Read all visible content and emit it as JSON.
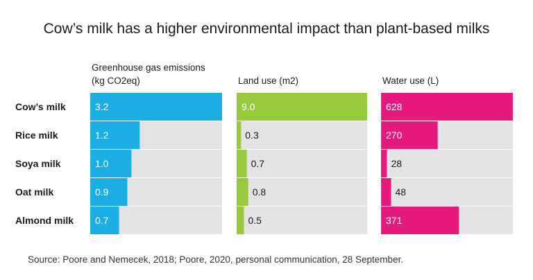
{
  "title": "Cow’s milk has a higher environmental impact than plant-based milks",
  "source": "Source: Poore and Nemecek, 2018; Poore, 2020, personal communication, 28 September.",
  "chart_data": {
    "type": "bar",
    "orientation": "horizontal",
    "categories": [
      "Cow’s milk",
      "Rice milk",
      "Soya milk",
      "Oat milk",
      "Almond milk"
    ],
    "series": [
      {
        "title_lines": [
          "Greenhouse gas emissions",
          "(kg CO2eq)"
        ],
        "values": [
          3.2,
          1.2,
          1.0,
          0.9,
          0.7
        ],
        "labels": [
          "3.2",
          "1.2",
          "1.0",
          "0.9",
          "0.7"
        ],
        "max": 3.2,
        "color": "#1aaee5",
        "label_color_inside": "#ffffff"
      },
      {
        "title_lines": [
          "Land use (m2)"
        ],
        "values": [
          9.0,
          0.3,
          0.7,
          0.8,
          0.5
        ],
        "labels": [
          "9.0",
          "0.3",
          "0.7",
          "0.8",
          "0.5"
        ],
        "max": 9.0,
        "color": "#98c93c",
        "label_color_inside": "#ffffff"
      },
      {
        "title_lines": [
          "Water use (L)"
        ],
        "values": [
          628,
          270,
          28,
          48,
          371
        ],
        "labels": [
          "628",
          "270",
          "28",
          "48",
          "371"
        ],
        "max": 628,
        "color": "#e6197d",
        "label_color_inside": "#ffffff"
      }
    ],
    "track_color": "#e3e3e3",
    "label_color_outside": "#1a1a1a"
  }
}
